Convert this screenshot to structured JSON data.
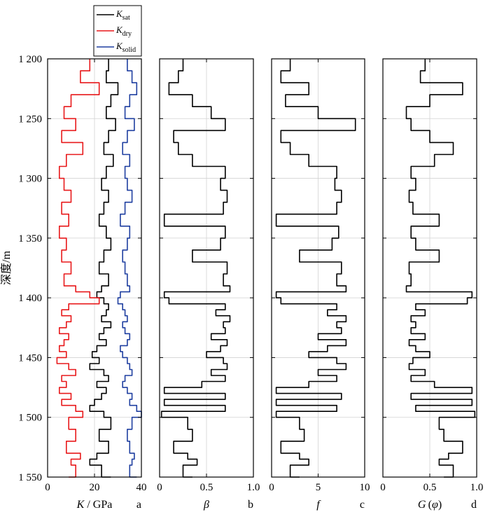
{
  "figure": {
    "ylabel": "深度/m",
    "y_ticks": [
      "1 200",
      "1 250",
      "1 300",
      "1 350",
      "1 400",
      "1 450",
      "1 500",
      "1 550"
    ]
  },
  "legend": [
    {
      "main": "K",
      "sub": "sat",
      "color": "#000000"
    },
    {
      "main": "K",
      "sub": "dry",
      "color": "#e8191b"
    },
    {
      "main": "K",
      "sub": "solid",
      "color": "#1f3fa0"
    }
  ],
  "chart_data": [
    {
      "type": "line",
      "panel_letter": "a",
      "xlabel_italic": "K",
      "xlabel_rest": " / GPa",
      "xlim": [
        0,
        40
      ],
      "x_ticks": [
        "0",
        "20",
        "40"
      ],
      "ylim": [
        1200,
        1550
      ],
      "grid": true,
      "series": [
        {
          "name": "Ksat",
          "color": "#000000",
          "x": [
            26,
            25,
            30,
            27,
            25,
            29,
            26,
            24,
            28,
            25,
            23,
            26,
            24,
            22,
            25,
            27,
            24,
            22,
            26,
            23,
            21,
            24,
            26,
            25,
            23,
            27,
            24,
            22,
            25,
            21,
            19,
            22,
            18,
            24,
            26,
            21,
            25,
            23,
            20,
            18,
            24,
            27,
            22,
            26,
            21,
            18,
            23,
            27
          ],
          "y": [
            1200,
            1210,
            1220,
            1230,
            1240,
            1250,
            1260,
            1270,
            1280,
            1290,
            1300,
            1310,
            1320,
            1330,
            1340,
            1350,
            1360,
            1370,
            1380,
            1390,
            1395,
            1400,
            1405,
            1410,
            1415,
            1420,
            1425,
            1430,
            1435,
            1440,
            1445,
            1450,
            1455,
            1460,
            1465,
            1470,
            1475,
            1480,
            1485,
            1490,
            1495,
            1500,
            1510,
            1520,
            1530,
            1535,
            1540,
            1550
          ]
        },
        {
          "name": "Kdry",
          "color": "#e8191b",
          "x": [
            18,
            14,
            22,
            10,
            7,
            12,
            6,
            15,
            8,
            5,
            7,
            10,
            6,
            9,
            5,
            8,
            6,
            10,
            7,
            12,
            18,
            22,
            9,
            6,
            10,
            8,
            5,
            9,
            7,
            5,
            8,
            4,
            9,
            12,
            6,
            8,
            5,
            10,
            6,
            12,
            15,
            9,
            12,
            8,
            14,
            10,
            12,
            9
          ],
          "y": [
            1200,
            1210,
            1220,
            1230,
            1240,
            1250,
            1260,
            1270,
            1280,
            1290,
            1300,
            1310,
            1320,
            1330,
            1340,
            1350,
            1360,
            1370,
            1380,
            1390,
            1395,
            1400,
            1405,
            1410,
            1415,
            1420,
            1425,
            1430,
            1435,
            1440,
            1445,
            1450,
            1455,
            1460,
            1465,
            1470,
            1475,
            1480,
            1485,
            1490,
            1495,
            1500,
            1510,
            1520,
            1530,
            1535,
            1540,
            1550
          ]
        },
        {
          "name": "Ksolid",
          "color": "#1f3fa0",
          "x": [
            34,
            36,
            38,
            35,
            33,
            37,
            34,
            32,
            35,
            33,
            34,
            36,
            33,
            31,
            35,
            34,
            32,
            33,
            34,
            35,
            31,
            30,
            32,
            33,
            34,
            32,
            33,
            35,
            34,
            31,
            32,
            34,
            35,
            36,
            33,
            32,
            34,
            36,
            35,
            38,
            40,
            36,
            34,
            35,
            37,
            36,
            35,
            38
          ],
          "y": [
            1200,
            1210,
            1220,
            1230,
            1240,
            1250,
            1260,
            1270,
            1280,
            1290,
            1300,
            1310,
            1320,
            1330,
            1340,
            1350,
            1360,
            1370,
            1380,
            1390,
            1395,
            1400,
            1405,
            1410,
            1415,
            1420,
            1425,
            1430,
            1435,
            1440,
            1445,
            1450,
            1455,
            1460,
            1465,
            1470,
            1475,
            1480,
            1485,
            1490,
            1495,
            1500,
            1510,
            1520,
            1530,
            1535,
            1540,
            1550
          ]
        }
      ]
    },
    {
      "type": "line",
      "panel_letter": "b",
      "xlabel_italic": "β",
      "xlabel_rest": "",
      "xlim": [
        0,
        1
      ],
      "x_ticks": [
        "0",
        "0.5",
        "1.0"
      ],
      "ylim": [
        1200,
        1550
      ],
      "grid": true,
      "series": [
        {
          "name": "beta",
          "color": "#000000",
          "x": [
            0.25,
            0.2,
            0.1,
            0.35,
            0.55,
            0.7,
            0.15,
            0.2,
            0.35,
            0.7,
            0.65,
            0.72,
            0.68,
            0.05,
            0.7,
            0.65,
            0.35,
            0.72,
            0.68,
            0.75,
            0.05,
            0.1,
            0.7,
            0.6,
            0.75,
            0.68,
            0.7,
            0.55,
            0.72,
            0.65,
            0.5,
            0.68,
            0.72,
            0.55,
            0.7,
            0.45,
            0.05,
            0.7,
            0.05,
            0.7,
            0.02,
            0.3,
            0.35,
            0.15,
            0.3,
            0.4,
            0.25,
            0.35
          ],
          "y": [
            1200,
            1210,
            1220,
            1230,
            1240,
            1250,
            1260,
            1270,
            1280,
            1290,
            1300,
            1310,
            1320,
            1330,
            1340,
            1350,
            1360,
            1370,
            1380,
            1390,
            1395,
            1400,
            1405,
            1410,
            1415,
            1420,
            1425,
            1430,
            1435,
            1440,
            1445,
            1450,
            1455,
            1460,
            1465,
            1470,
            1475,
            1480,
            1485,
            1490,
            1495,
            1500,
            1510,
            1520,
            1530,
            1535,
            1540,
            1550
          ]
        }
      ]
    },
    {
      "type": "line",
      "panel_letter": "c",
      "xlabel_italic": "f",
      "xlabel_rest": "",
      "xlim": [
        0,
        10
      ],
      "x_ticks": [
        "0",
        "5",
        "10"
      ],
      "ylim": [
        1200,
        1550
      ],
      "grid": true,
      "series": [
        {
          "name": "f",
          "color": "#000000",
          "x": [
            2,
            1,
            4,
            1.5,
            5,
            9,
            1,
            2,
            4,
            7,
            6.8,
            7.5,
            7,
            0.5,
            7.2,
            6.5,
            3,
            7.5,
            7,
            8,
            0.5,
            1,
            7,
            6,
            8,
            7,
            7.5,
            5,
            8,
            6,
            4,
            7,
            8,
            5,
            7,
            4,
            0.5,
            7.5,
            0.5,
            7,
            0.5,
            3,
            3.5,
            1,
            3,
            4,
            2,
            3
          ],
          "y": [
            1200,
            1210,
            1220,
            1230,
            1240,
            1250,
            1260,
            1270,
            1280,
            1290,
            1300,
            1310,
            1320,
            1330,
            1340,
            1350,
            1360,
            1370,
            1380,
            1390,
            1395,
            1400,
            1405,
            1410,
            1415,
            1420,
            1425,
            1430,
            1435,
            1440,
            1445,
            1450,
            1455,
            1460,
            1465,
            1470,
            1475,
            1480,
            1485,
            1490,
            1495,
            1500,
            1510,
            1520,
            1530,
            1535,
            1540,
            1550
          ]
        }
      ]
    },
    {
      "type": "line",
      "panel_letter": "d",
      "xlabel_italic": "G",
      "xlabel_rest": " (",
      "xlabel_italic2": "φ",
      "xlabel_end": ")",
      "xlim": [
        0,
        1
      ],
      "x_ticks": [
        "0",
        "0.5",
        "1.0"
      ],
      "ylim": [
        1200,
        1550
      ],
      "grid": true,
      "series": [
        {
          "name": "G",
          "color": "#000000",
          "x": [
            0.45,
            0.4,
            0.85,
            0.5,
            0.25,
            0.3,
            0.5,
            0.75,
            0.55,
            0.3,
            0.35,
            0.28,
            0.32,
            0.6,
            0.3,
            0.35,
            0.6,
            0.28,
            0.3,
            0.25,
            0.95,
            0.9,
            0.35,
            0.45,
            0.3,
            0.35,
            0.3,
            0.45,
            0.28,
            0.35,
            0.5,
            0.32,
            0.28,
            0.45,
            0.3,
            0.55,
            0.95,
            0.3,
            0.95,
            0.35,
            0.98,
            0.6,
            0.65,
            0.85,
            0.7,
            0.6,
            0.75,
            0.65
          ],
          "y": [
            1200,
            1210,
            1220,
            1230,
            1240,
            1250,
            1260,
            1270,
            1280,
            1290,
            1300,
            1310,
            1320,
            1330,
            1340,
            1350,
            1360,
            1370,
            1380,
            1390,
            1395,
            1400,
            1405,
            1410,
            1415,
            1420,
            1425,
            1430,
            1435,
            1440,
            1445,
            1450,
            1455,
            1460,
            1465,
            1470,
            1475,
            1480,
            1485,
            1490,
            1495,
            1500,
            1510,
            1520,
            1530,
            1535,
            1540,
            1550
          ]
        }
      ]
    }
  ]
}
